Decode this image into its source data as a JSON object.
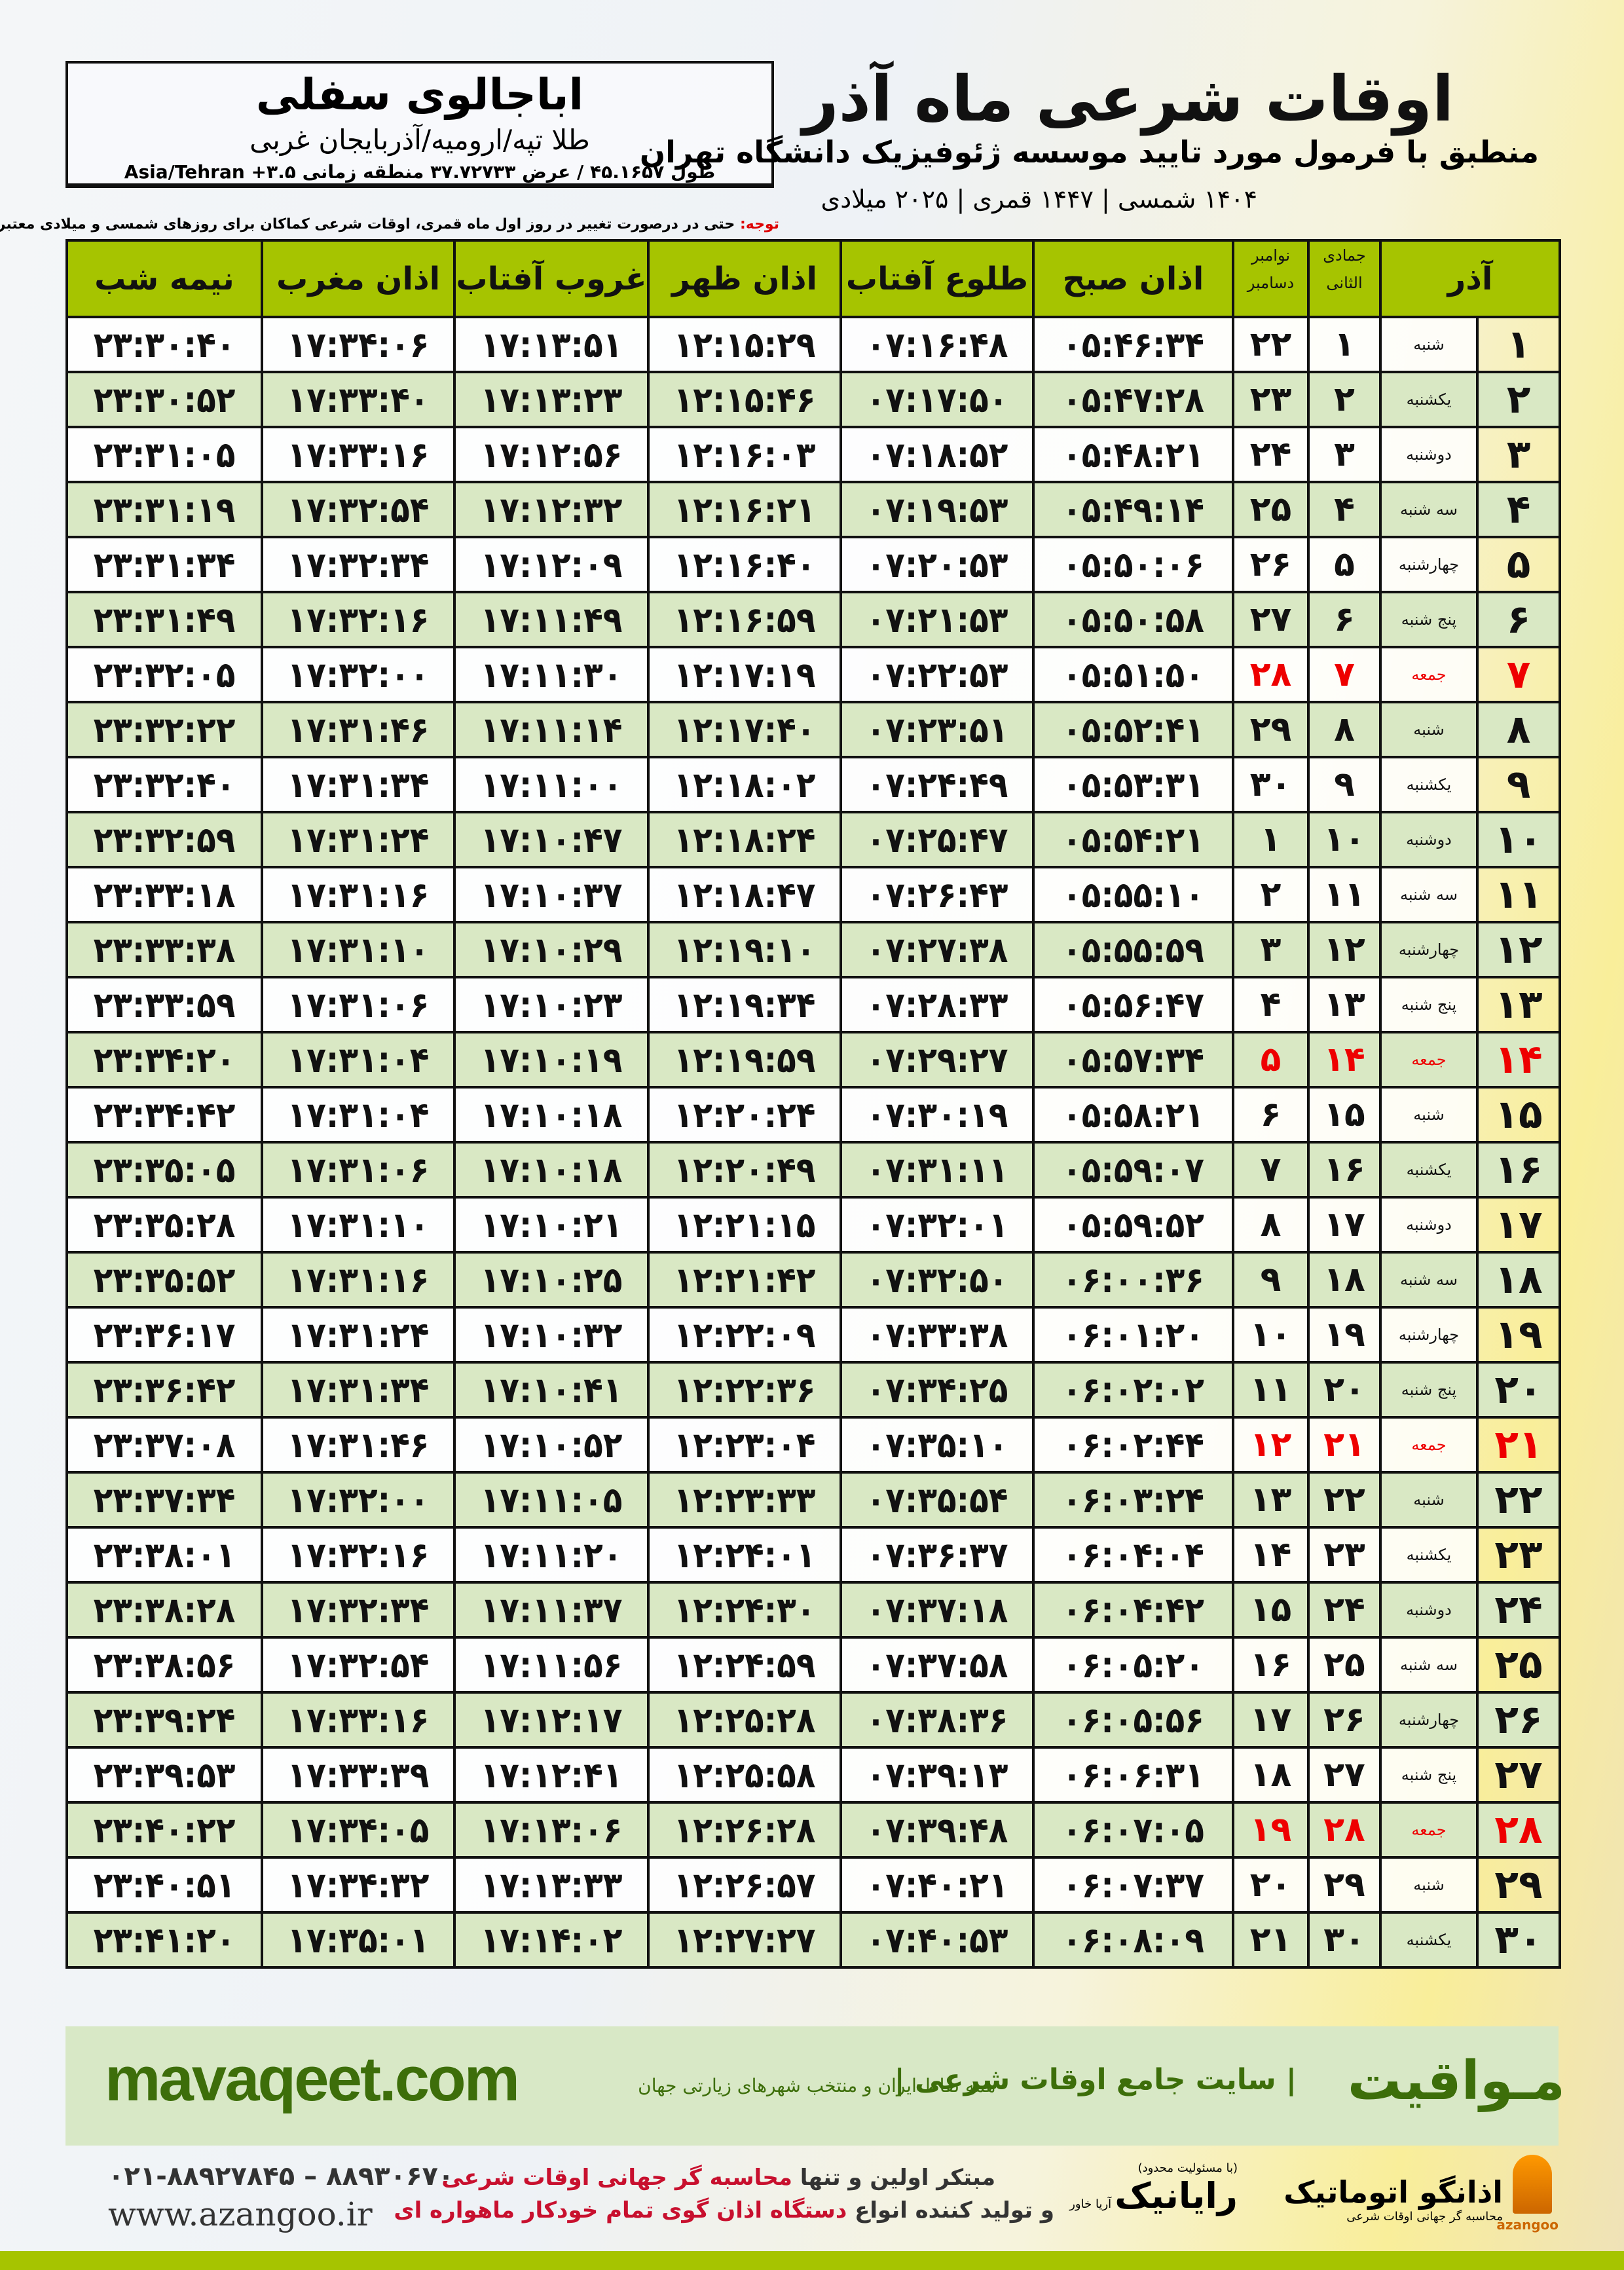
{
  "location": {
    "name": "اباجالوی سفلی",
    "path": "طلا تپه/ارومیه/آذربایجان غربی",
    "coords": "طول ۴۵.۱۶۵۷ / عرض ۳۷.۷۲۷۳۳ منطقه زمانی ۳.۵+ Asia/Tehran"
  },
  "header": {
    "title": "اوقات شرعی ماه آذر",
    "subtitle": "منطبق با فرمول مورد تایید موسسه ژئوفیزیک دانشگاه تهران",
    "dates": "۱۴۰۴ شمسی | ۱۴۴۷ قمری | ۲۰۲۵ میلادی"
  },
  "note": {
    "label": "توجه:",
    "text": " حتی در درصورت تغییر در روز اول ماه قمری، اوقات شرعی کماکان برای روزهای شمسی و میلادی معتبر است."
  },
  "columns": {
    "month": "آذر",
    "hijri": "جمادی الثانی",
    "greg": "نوامبر",
    "greg2": "دسامبر",
    "fajr": "اذان صبح",
    "sunrise": "طلوع آفتاب",
    "dhuhr": "اذان ظهر",
    "sunset": "غروب آفتاب",
    "maghrib": "اذان مغرب",
    "midnight": "نیمه شب"
  },
  "colors": {
    "header_green": "#a6c400",
    "row_green": "#d9e8c4",
    "friday_red": "#e00000",
    "brand_green": "#3d6e0a"
  },
  "rows": [
    [
      "۱",
      "شنبه",
      "۱",
      "۲۲",
      "۰۵:۴۶:۳۴",
      "۰۷:۱۶:۴۸",
      "۱۲:۱۵:۲۹",
      "۱۷:۱۳:۵۱",
      "۱۷:۳۴:۰۶",
      "۲۳:۳۰:۴۰"
    ],
    [
      "۲",
      "یکشنبه",
      "۲",
      "۲۳",
      "۰۵:۴۷:۲۸",
      "۰۷:۱۷:۵۰",
      "۱۲:۱۵:۴۶",
      "۱۷:۱۳:۲۳",
      "۱۷:۳۳:۴۰",
      "۲۳:۳۰:۵۲"
    ],
    [
      "۳",
      "دوشنبه",
      "۳",
      "۲۴",
      "۰۵:۴۸:۲۱",
      "۰۷:۱۸:۵۲",
      "۱۲:۱۶:۰۳",
      "۱۷:۱۲:۵۶",
      "۱۷:۳۳:۱۶",
      "۲۳:۳۱:۰۵"
    ],
    [
      "۴",
      "سه شنبه",
      "۴",
      "۲۵",
      "۰۵:۴۹:۱۴",
      "۰۷:۱۹:۵۳",
      "۱۲:۱۶:۲۱",
      "۱۷:۱۲:۳۲",
      "۱۷:۳۲:۵۴",
      "۲۳:۳۱:۱۹"
    ],
    [
      "۵",
      "چهارشنبه",
      "۵",
      "۲۶",
      "۰۵:۵۰:۰۶",
      "۰۷:۲۰:۵۳",
      "۱۲:۱۶:۴۰",
      "۱۷:۱۲:۰۹",
      "۱۷:۳۲:۳۴",
      "۲۳:۳۱:۳۴"
    ],
    [
      "۶",
      "پنج شنبه",
      "۶",
      "۲۷",
      "۰۵:۵۰:۵۸",
      "۰۷:۲۱:۵۳",
      "۱۲:۱۶:۵۹",
      "۱۷:۱۱:۴۹",
      "۱۷:۳۲:۱۶",
      "۲۳:۳۱:۴۹"
    ],
    [
      "۷",
      "جمعه",
      "۷",
      "۲۸",
      "۰۵:۵۱:۵۰",
      "۰۷:۲۲:۵۳",
      "۱۲:۱۷:۱۹",
      "۱۷:۱۱:۳۰",
      "۱۷:۳۲:۰۰",
      "۲۳:۳۲:۰۵"
    ],
    [
      "۸",
      "شنبه",
      "۸",
      "۲۹",
      "۰۵:۵۲:۴۱",
      "۰۷:۲۳:۵۱",
      "۱۲:۱۷:۴۰",
      "۱۷:۱۱:۱۴",
      "۱۷:۳۱:۴۶",
      "۲۳:۳۲:۲۲"
    ],
    [
      "۹",
      "یکشنبه",
      "۹",
      "۳۰",
      "۰۵:۵۳:۳۱",
      "۰۷:۲۴:۴۹",
      "۱۲:۱۸:۰۲",
      "۱۷:۱۱:۰۰",
      "۱۷:۳۱:۳۴",
      "۲۳:۳۲:۴۰"
    ],
    [
      "۱۰",
      "دوشنبه",
      "۱۰",
      "۱",
      "۰۵:۵۴:۲۱",
      "۰۷:۲۵:۴۷",
      "۱۲:۱۸:۲۴",
      "۱۷:۱۰:۴۷",
      "۱۷:۳۱:۲۴",
      "۲۳:۳۲:۵۹"
    ],
    [
      "۱۱",
      "سه شنبه",
      "۱۱",
      "۲",
      "۰۵:۵۵:۱۰",
      "۰۷:۲۶:۴۳",
      "۱۲:۱۸:۴۷",
      "۱۷:۱۰:۳۷",
      "۱۷:۳۱:۱۶",
      "۲۳:۳۳:۱۸"
    ],
    [
      "۱۲",
      "چهارشنبه",
      "۱۲",
      "۳",
      "۰۵:۵۵:۵۹",
      "۰۷:۲۷:۳۸",
      "۱۲:۱۹:۱۰",
      "۱۷:۱۰:۲۹",
      "۱۷:۳۱:۱۰",
      "۲۳:۳۳:۳۸"
    ],
    [
      "۱۳",
      "پنج شنبه",
      "۱۳",
      "۴",
      "۰۵:۵۶:۴۷",
      "۰۷:۲۸:۳۳",
      "۱۲:۱۹:۳۴",
      "۱۷:۱۰:۲۳",
      "۱۷:۳۱:۰۶",
      "۲۳:۳۳:۵۹"
    ],
    [
      "۱۴",
      "جمعه",
      "۱۴",
      "۵",
      "۰۵:۵۷:۳۴",
      "۰۷:۲۹:۲۷",
      "۱۲:۱۹:۵۹",
      "۱۷:۱۰:۱۹",
      "۱۷:۳۱:۰۴",
      "۲۳:۳۴:۲۰"
    ],
    [
      "۱۵",
      "شنبه",
      "۱۵",
      "۶",
      "۰۵:۵۸:۲۱",
      "۰۷:۳۰:۱۹",
      "۱۲:۲۰:۲۴",
      "۱۷:۱۰:۱۸",
      "۱۷:۳۱:۰۴",
      "۲۳:۳۴:۴۲"
    ],
    [
      "۱۶",
      "یکشنبه",
      "۱۶",
      "۷",
      "۰۵:۵۹:۰۷",
      "۰۷:۳۱:۱۱",
      "۱۲:۲۰:۴۹",
      "۱۷:۱۰:۱۸",
      "۱۷:۳۱:۰۶",
      "۲۳:۳۵:۰۵"
    ],
    [
      "۱۷",
      "دوشنبه",
      "۱۷",
      "۸",
      "۰۵:۵۹:۵۲",
      "۰۷:۳۲:۰۱",
      "۱۲:۲۱:۱۵",
      "۱۷:۱۰:۲۱",
      "۱۷:۳۱:۱۰",
      "۲۳:۳۵:۲۸"
    ],
    [
      "۱۸",
      "سه شنبه",
      "۱۸",
      "۹",
      "۰۶:۰۰:۳۶",
      "۰۷:۳۲:۵۰",
      "۱۲:۲۱:۴۲",
      "۱۷:۱۰:۲۵",
      "۱۷:۳۱:۱۶",
      "۲۳:۳۵:۵۲"
    ],
    [
      "۱۹",
      "چهارشنبه",
      "۱۹",
      "۱۰",
      "۰۶:۰۱:۲۰",
      "۰۷:۳۳:۳۸",
      "۱۲:۲۲:۰۹",
      "۱۷:۱۰:۳۲",
      "۱۷:۳۱:۲۴",
      "۲۳:۳۶:۱۷"
    ],
    [
      "۲۰",
      "پنج شنبه",
      "۲۰",
      "۱۱",
      "۰۶:۰۲:۰۲",
      "۰۷:۳۴:۲۵",
      "۱۲:۲۲:۳۶",
      "۱۷:۱۰:۴۱",
      "۱۷:۳۱:۳۴",
      "۲۳:۳۶:۴۲"
    ],
    [
      "۲۱",
      "جمعه",
      "۲۱",
      "۱۲",
      "۰۶:۰۲:۴۴",
      "۰۷:۳۵:۱۰",
      "۱۲:۲۳:۰۴",
      "۱۷:۱۰:۵۲",
      "۱۷:۳۱:۴۶",
      "۲۳:۳۷:۰۸"
    ],
    [
      "۲۲",
      "شنبه",
      "۲۲",
      "۱۳",
      "۰۶:۰۳:۲۴",
      "۰۷:۳۵:۵۴",
      "۱۲:۲۳:۳۳",
      "۱۷:۱۱:۰۵",
      "۱۷:۳۲:۰۰",
      "۲۳:۳۷:۳۴"
    ],
    [
      "۲۳",
      "یکشنبه",
      "۲۳",
      "۱۴",
      "۰۶:۰۴:۰۴",
      "۰۷:۳۶:۳۷",
      "۱۲:۲۴:۰۱",
      "۱۷:۱۱:۲۰",
      "۱۷:۳۲:۱۶",
      "۲۳:۳۸:۰۱"
    ],
    [
      "۲۴",
      "دوشنبه",
      "۲۴",
      "۱۵",
      "۰۶:۰۴:۴۲",
      "۰۷:۳۷:۱۸",
      "۱۲:۲۴:۳۰",
      "۱۷:۱۱:۳۷",
      "۱۷:۳۲:۳۴",
      "۲۳:۳۸:۲۸"
    ],
    [
      "۲۵",
      "سه شنبه",
      "۲۵",
      "۱۶",
      "۰۶:۰۵:۲۰",
      "۰۷:۳۷:۵۸",
      "۱۲:۲۴:۵۹",
      "۱۷:۱۱:۵۶",
      "۱۷:۳۲:۵۴",
      "۲۳:۳۸:۵۶"
    ],
    [
      "۲۶",
      "چهارشنبه",
      "۲۶",
      "۱۷",
      "۰۶:۰۵:۵۶",
      "۰۷:۳۸:۳۶",
      "۱۲:۲۵:۲۸",
      "۱۷:۱۲:۱۷",
      "۱۷:۳۳:۱۶",
      "۲۳:۳۹:۲۴"
    ],
    [
      "۲۷",
      "پنج شنبه",
      "۲۷",
      "۱۸",
      "۰۶:۰۶:۳۱",
      "۰۷:۳۹:۱۳",
      "۱۲:۲۵:۵۸",
      "۱۷:۱۲:۴۱",
      "۱۷:۳۳:۳۹",
      "۲۳:۳۹:۵۳"
    ],
    [
      "۲۸",
      "جمعه",
      "۲۸",
      "۱۹",
      "۰۶:۰۷:۰۵",
      "۰۷:۳۹:۴۸",
      "۱۲:۲۶:۲۸",
      "۱۷:۱۳:۰۶",
      "۱۷:۳۴:۰۵",
      "۲۳:۴۰:۲۲"
    ],
    [
      "۲۹",
      "شنبه",
      "۲۹",
      "۲۰",
      "۰۶:۰۷:۳۷",
      "۰۷:۴۰:۲۱",
      "۱۲:۲۶:۵۷",
      "۱۷:۱۳:۳۳",
      "۱۷:۳۴:۳۲",
      "۲۳:۴۰:۵۱"
    ],
    [
      "۳۰",
      "یکشنبه",
      "۳۰",
      "۲۱",
      "۰۶:۰۸:۰۹",
      "۰۷:۴۰:۵۳",
      "۱۲:۲۷:۲۷",
      "۱۷:۱۴:۰۲",
      "۱۷:۳۵:۰۱",
      "۲۳:۴۱:۲۰"
    ]
  ],
  "friday_label": "جمعه",
  "footer": {
    "brand": "مـواقیت",
    "tagline": "| سایت جامع اوقات شرعی |",
    "tagsub": "همه نقاط ایران و منتخب شهرهای زیارتی جهان",
    "site": "mavaqeet.com",
    "phone": "۰۲۱-۸۸۹۲۷۸۴۵ – ۸۸۹۳۰۶۷۰",
    "www": "www.azangoo.ir",
    "promo1_a": "مبتکر اولین و تنها ",
    "promo1_b": "محاسبه گر جهانی اوقات شرعی",
    "promo2_a": "و تولید کننده انواع ",
    "promo2_b": "دستگاه اذان گوی تمام خودکار ماهواره ای",
    "logo_rayanik": "رایانیک",
    "logo_rayanik_sub": "آریا خاور",
    "logo_rayanik_note": "(با مسئولیت محدود)",
    "logo_azangoo": "اذانگو اتوماتیک",
    "logo_azangoo_sub": "محاسبه گر جهانی اوقات شرعی",
    "logo_azangoo_en": "azangoo"
  }
}
